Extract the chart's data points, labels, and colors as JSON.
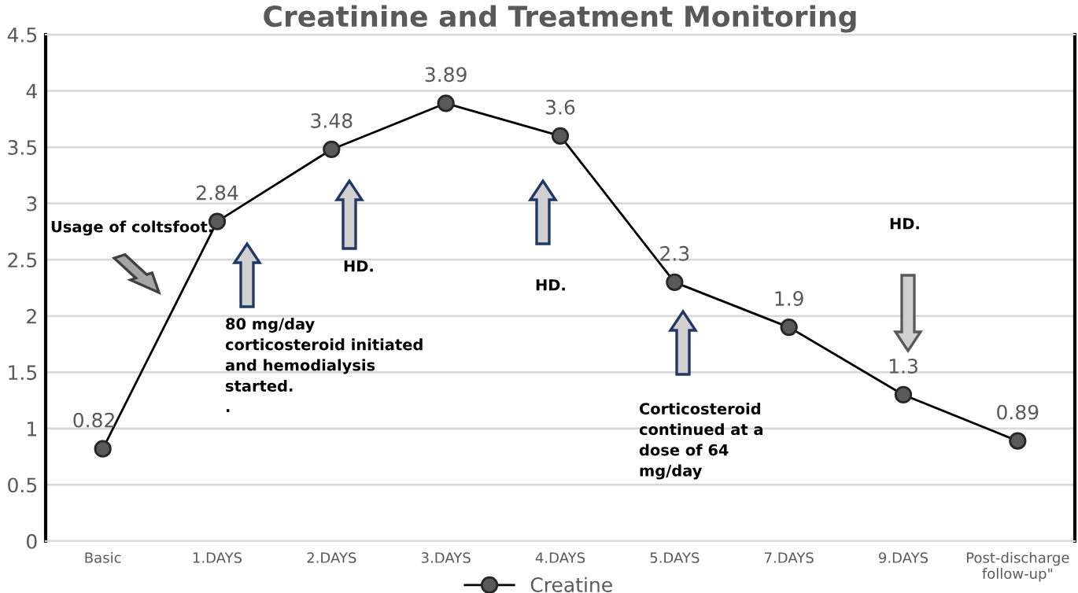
{
  "chart_data": {
    "type": "line",
    "title": "Creatinine and Treatment Monitoring",
    "categories": [
      "Basic",
      "1.DAYS",
      "2.DAYS",
      "3.DAYS",
      "4.DAYS",
      "5.DAYS",
      "7.DAYS",
      "9.DAYS",
      "Post-discharge\nfollow-up\""
    ],
    "series": [
      {
        "name": "Creatine",
        "color": "#000000",
        "values": [
          0.82,
          2.84,
          3.48,
          3.89,
          3.6,
          2.3,
          1.9,
          1.3,
          0.89
        ]
      }
    ],
    "ylim": [
      0,
      4.5
    ],
    "yticks": [
      0,
      0.5,
      1,
      1.5,
      2,
      2.5,
      3,
      3.5,
      4,
      4.5
    ],
    "grid": "y",
    "legend": "bottom",
    "marker": "circle",
    "line_style": "solid",
    "data_labels": true,
    "annotations": [
      "Usage of coltsfoot.",
      "80 mg/day\ncorticosteroid initiated\nand hemodialysis\nstarted.\n.",
      "HD.",
      "HD.",
      "Corticosteroid\ncontinued at a\ndose of 64\nmg/day",
      "HD."
    ]
  }
}
